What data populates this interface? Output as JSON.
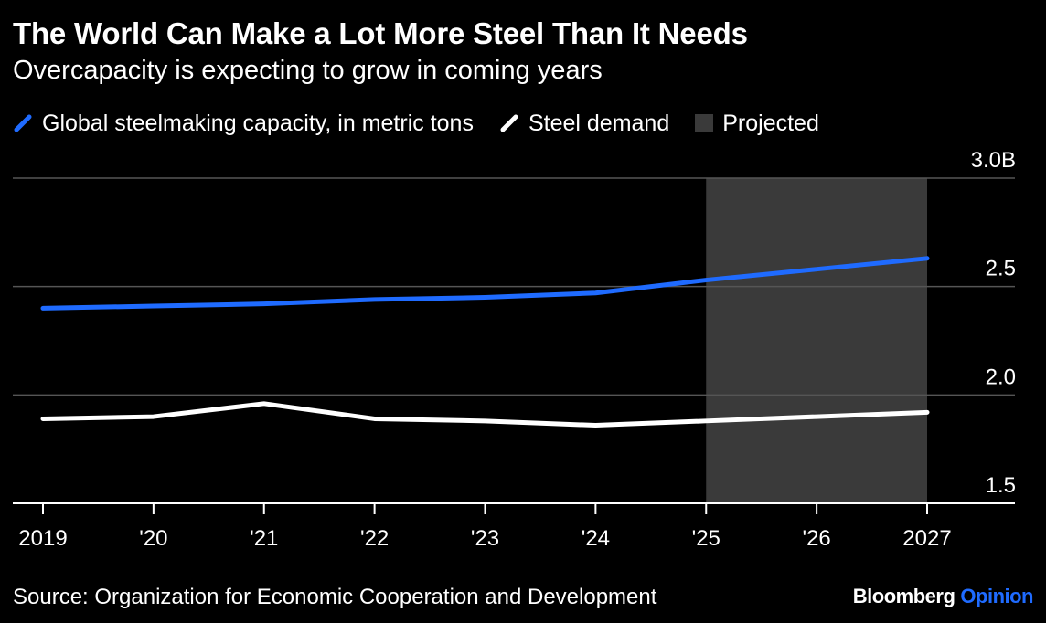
{
  "header": {
    "title": "The World Can Make a Lot More Steel Than It Needs",
    "subtitle": "Overcapacity is expecting to grow in coming years"
  },
  "legend": {
    "items": [
      {
        "label": "Global steelmaking capacity, in metric tons",
        "color": "#1f6bff",
        "kind": "line"
      },
      {
        "label": "Steel demand",
        "color": "#ffffff",
        "kind": "line"
      },
      {
        "label": "Projected",
        "color": "#3a3a3a",
        "kind": "box"
      }
    ]
  },
  "footer": {
    "source": "Source: Organization for Economic Cooperation and Development",
    "brand_primary": "Bloomberg",
    "brand_secondary": "Opinion"
  },
  "colors": {
    "background": "#000000",
    "capacity": "#1f6bff",
    "demand": "#ffffff",
    "projected": "#3a3a3a",
    "grid": "#555555"
  },
  "chart_data": {
    "type": "line",
    "title": "The World Can Make a Lot More Steel Than It Needs",
    "subtitle": "Overcapacity is expecting to grow in coming years",
    "x": [
      2019,
      2020,
      2021,
      2022,
      2023,
      2024,
      2025,
      2026,
      2027
    ],
    "x_tick_labels": [
      "2019",
      "'20",
      "'21",
      "'22",
      "'23",
      "'24",
      "'25",
      "'26",
      "2027"
    ],
    "y_tick_values": [
      1.5,
      2.0,
      2.5,
      3.0
    ],
    "y_tick_labels": [
      "1.5",
      "2.0",
      "2.5",
      "3.0B"
    ],
    "ylim": [
      1.5,
      3.0
    ],
    "y_unit": "billion metric tons",
    "grid": true,
    "legend_position": "top-left",
    "projected_range": [
      2025,
      2027
    ],
    "series": [
      {
        "name": "Global steelmaking capacity, in metric tons",
        "color": "#1f6bff",
        "values": [
          2.4,
          2.41,
          2.42,
          2.44,
          2.45,
          2.47,
          2.53,
          2.58,
          2.63
        ]
      },
      {
        "name": "Steel demand",
        "color": "#ffffff",
        "values": [
          1.89,
          1.9,
          1.96,
          1.89,
          1.88,
          1.86,
          1.88,
          1.9,
          1.92
        ]
      }
    ]
  }
}
